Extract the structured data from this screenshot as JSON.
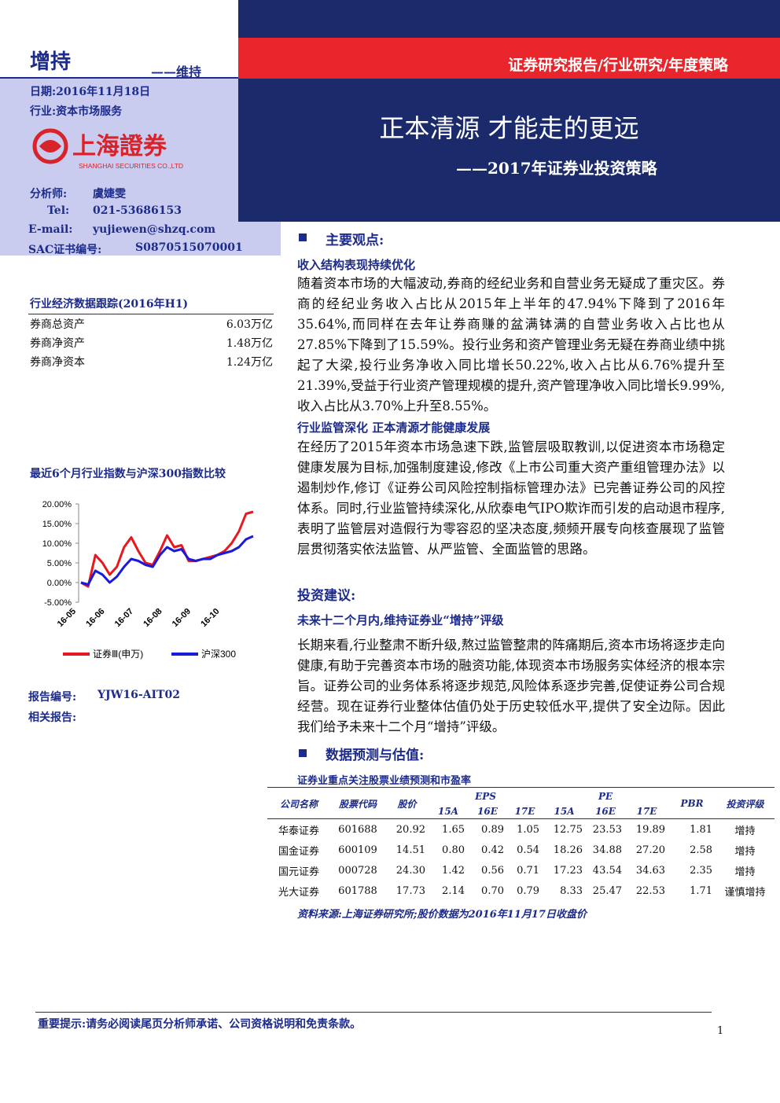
{
  "header": {
    "rating": "增持",
    "rating_prev": "——维持",
    "report_type": "证券研究报告/行业研究/年度策略",
    "title": "正本清源 才能走的更远",
    "subtitle": "——2017年证券业投资策略"
  },
  "info": {
    "date": "日期:2016年11月18日",
    "industry": "行业:资本市场服务",
    "logo_text": "上海證券",
    "logo_en": "SHANGHAI SECURITIES CO.,LTD",
    "analyst_label": "分析师:",
    "analyst": "虞婕雯",
    "tel_label": "Tel:",
    "tel": "021-53686153",
    "email_label": "E-mail:",
    "email": "yujiewen@shzq.com",
    "sac_label": "SAC证书编号:",
    "sac": "S0870515070001"
  },
  "sidebar_data": {
    "title": "行业经济数据跟踪(2016年H1)",
    "rows": [
      [
        "券商总资产",
        "6.03万亿"
      ],
      [
        "券商净资产",
        "1.48万亿"
      ],
      [
        "券商净资本",
        "1.24万亿"
      ]
    ]
  },
  "chart_data": {
    "type": "line",
    "title": "最近6个月行业指数与沪深300指数比较",
    "categories": [
      "16-05",
      null,
      null,
      null,
      "16-06",
      null,
      null,
      null,
      "16-07",
      null,
      null,
      null,
      "16-08",
      null,
      null,
      null,
      "16-09",
      null,
      null,
      null,
      "16-10",
      null,
      null,
      null,
      null
    ],
    "series": [
      {
        "name": "证券Ⅲ(申万)",
        "color": "#e8191e",
        "values": [
          0,
          -1,
          7,
          5,
          2,
          4,
          9,
          11.5,
          8,
          5,
          4.5,
          8,
          12,
          9,
          9.5,
          5.5,
          5.5,
          6,
          6.5,
          7,
          8,
          10,
          13,
          17.5,
          18
        ]
      },
      {
        "name": "沪深300",
        "color": "#1a1adb",
        "values": [
          0,
          -0.5,
          3,
          2,
          0,
          1.5,
          4,
          6,
          5.5,
          4.5,
          4,
          7,
          9,
          8,
          8.5,
          6,
          5.5,
          6,
          6,
          7,
          7.5,
          8,
          9,
          11,
          11.8
        ]
      }
    ],
    "ylim": [
      -5,
      20
    ],
    "yticks": [
      {
        "value": -5,
        "label": "-5.00%"
      },
      {
        "value": 0,
        "label": "0.00%"
      },
      {
        "value": 5,
        "label": "5.00%"
      },
      {
        "value": 10,
        "label": "10.00%"
      },
      {
        "value": 15,
        "label": "15.00%"
      },
      {
        "value": 20,
        "label": "20.00%"
      }
    ],
    "legend": "bottom"
  },
  "report": {
    "number_label": "报告编号:",
    "number": "YJW16-AIT02",
    "related_label": "相关报告:"
  },
  "main": {
    "heading": "主要观点:",
    "sub1": "收入结构表现持续优化",
    "para1": "随着资本市场的大幅波动,券商的经纪业务和自营业务无疑成了重灾区。券商的经纪业务收入占比从2015年上半年的47.94%下降到了2016年35.64%,而同样在去年让券商赚的盆满钵满的自营业务收入占比也从27.85%下降到了15.59%。投行业务和资产管理业务无疑在券商业绩中挑起了大梁,投行业务净收入同比增长50.22%,收入占比从6.76%提升至21.39%,受益于行业资产管理规模的提升,资产管理净收入同比增长9.99%,收入占比从3.70%上升至8.55%。",
    "sub2": "行业监管深化 正本清源才能健康发展",
    "para2": "在经历了2015年资本市场急速下跌,监管层吸取教训,以促进资本市场稳定健康发展为目标,加强制度建设,修改《上市公司重大资产重组管理办法》以遏制炒作,修订《证券公司风险控制指标管理办法》已完善证券公司的风控体系。同时,行业监管持续深化,从欣泰电气IPO欺诈而引发的启动退市程序,表明了监管层对造假行为零容忍的坚决态度,频频开展专向核查展现了监管层贯彻落实依法监管、从严监管、全面监管的思路。",
    "invest_heading": "投资建议:",
    "invest_sub": "未来十二个月内,维持证券业“增持”评级",
    "para3": "长期来看,行业整肃不断升级,熬过监管整肃的阵痛期后,资本市场将逐步走向健康,有助于完善资本市场的融资功能,体现资本市场服务实体经济的根本宗旨。证券公司的业务体系将逐步规范,风险体系逐步完善,促使证券公司合规经营。现在证券行业整体估值仍处于历史较低水平,提供了安全边际。因此我们给予未来十二个月“增持”评级。",
    "data_heading": "数据预测与估值:"
  },
  "table": {
    "title": "证券业重点关注股票业绩预测和市盈率",
    "columns": {
      "company": "公司名称",
      "code": "股票代码",
      "price": "股价",
      "eps": "EPS",
      "pe": "PE",
      "pbr": "PBR",
      "rating": "投资评级"
    },
    "sub_columns": [
      "15A",
      "16E",
      "17E"
    ],
    "rows": [
      [
        "华泰证券",
        "601688",
        "20.92",
        "1.65",
        "0.89",
        "1.05",
        "12.75",
        "23.53",
        "19.89",
        "1.81",
        "增持"
      ],
      [
        "国金证券",
        "600109",
        "14.51",
        "0.80",
        "0.42",
        "0.54",
        "18.26",
        "34.88",
        "27.20",
        "2.58",
        "增持"
      ],
      [
        "国元证券",
        "000728",
        "24.30",
        "1.42",
        "0.56",
        "0.71",
        "17.23",
        "43.54",
        "34.63",
        "2.35",
        "增持"
      ],
      [
        "光大证券",
        "601788",
        "17.73",
        "2.14",
        "0.70",
        "0.79",
        "8.33",
        "25.47",
        "22.53",
        "1.71",
        "谨慎增持"
      ]
    ],
    "source": "资料来源:上海证券研究所;股价数据为2016年11月17日收盘价"
  },
  "footer": {
    "notice": "重要提示:请务必阅读尾页分析师承诺、公司资格说明和免责条款。",
    "page": "1"
  }
}
